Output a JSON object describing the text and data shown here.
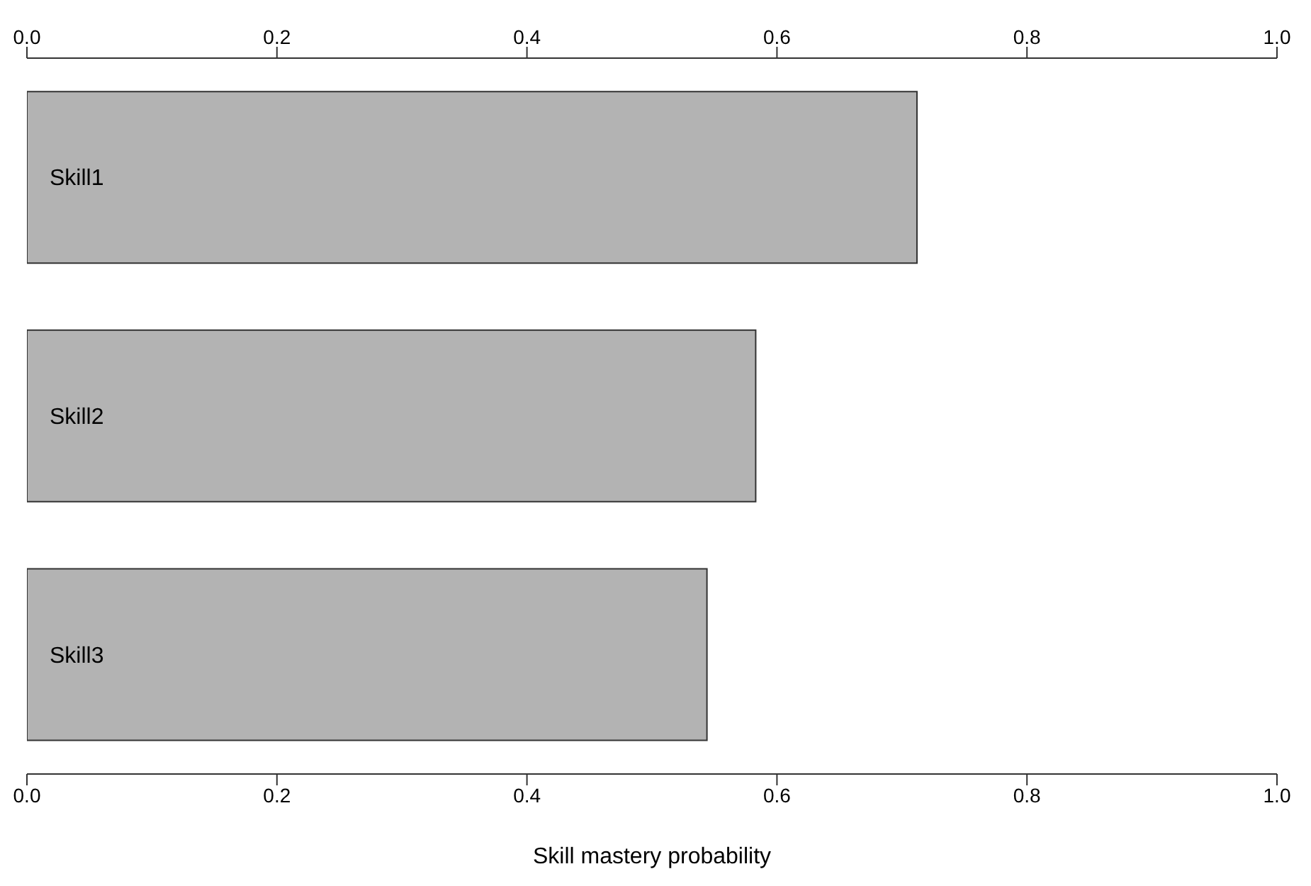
{
  "chart_data": {
    "type": "bar",
    "orientation": "horizontal",
    "categories": [
      "Skill1",
      "Skill2",
      "Skill3"
    ],
    "values": [
      0.712,
      0.583,
      0.544
    ],
    "color": "#b3b3b3",
    "xlabel": "Skill mastery probability",
    "xlim": [
      0,
      1
    ],
    "xticks": [
      {
        "value": 0,
        "label": "0.0"
      },
      {
        "value": 0.2,
        "label": "0.2"
      },
      {
        "value": 0.4,
        "label": "0.4"
      },
      {
        "value": 0.6,
        "label": "0.6"
      },
      {
        "value": 0.8,
        "label": "0.8"
      },
      {
        "value": 1,
        "label": "1.0"
      }
    ],
    "x2lim": [
      0,
      1
    ],
    "x2ticks": [
      {
        "value": 0,
        "label": "0.0"
      },
      {
        "value": 0.2,
        "label": "0.2"
      },
      {
        "value": 0.4,
        "label": "0.4"
      },
      {
        "value": 0.6,
        "label": "0.6"
      },
      {
        "value": 0.8,
        "label": "0.8"
      },
      {
        "value": 1,
        "label": "1.0"
      }
    ],
    "grid": false,
    "legend": false
  }
}
